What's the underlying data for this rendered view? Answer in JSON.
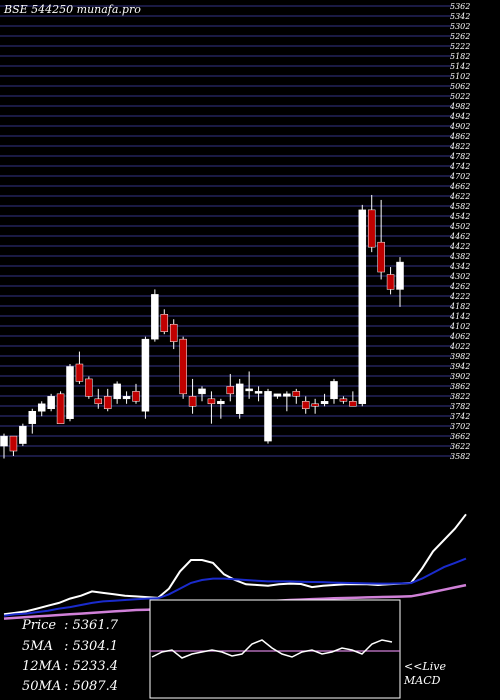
{
  "header": {
    "title": "BSE 544250  munafa.pro"
  },
  "colors": {
    "background": "#000000",
    "grid": "#2b2b6e",
    "up_candle": "#ffffff",
    "down_candle": "#c00000",
    "ma_fast": "#ffffff",
    "ma_mid": "#1a2bcc",
    "ma_slow": "#d080d8",
    "text": "#ffffff"
  },
  "chart_data": [
    {
      "type": "candlestick",
      "title": "BSE 544250  munafa.pro",
      "y_tick_labels": [
        "5362",
        "5342",
        "5302",
        "5262",
        "5222",
        "5182",
        "5142",
        "5102",
        "5062",
        "5022",
        "4982",
        "4942",
        "4902",
        "4862",
        "4822",
        "4782",
        "4742",
        "4702",
        "4662",
        "4622",
        "4582",
        "4542",
        "4502",
        "4462",
        "4422",
        "4382",
        "4342",
        "4302",
        "4262",
        "4222",
        "4182",
        "4142",
        "4102",
        "4062",
        "4022",
        "3982",
        "3942",
        "3902",
        "3862",
        "3822",
        "3782",
        "3742",
        "3702",
        "3662",
        "3622",
        "3582"
      ],
      "ylim": [
        3570,
        5380
      ],
      "candles": [
        {
          "o": 3610,
          "h": 3660,
          "l": 3560,
          "c": 3650
        },
        {
          "o": 3650,
          "h": 3640,
          "l": 3570,
          "c": 3590
        },
        {
          "o": 3620,
          "h": 3700,
          "l": 3610,
          "c": 3690
        },
        {
          "o": 3700,
          "h": 3760,
          "l": 3660,
          "c": 3750
        },
        {
          "o": 3750,
          "h": 3790,
          "l": 3730,
          "c": 3780
        },
        {
          "o": 3760,
          "h": 3820,
          "l": 3750,
          "c": 3810
        },
        {
          "o": 3820,
          "h": 3830,
          "l": 3700,
          "c": 3700
        },
        {
          "o": 3720,
          "h": 3940,
          "l": 3710,
          "c": 3930
        },
        {
          "o": 3940,
          "h": 3990,
          "l": 3860,
          "c": 3870
        },
        {
          "o": 3880,
          "h": 3890,
          "l": 3800,
          "c": 3810
        },
        {
          "o": 3800,
          "h": 3840,
          "l": 3760,
          "c": 3780
        },
        {
          "o": 3810,
          "h": 3840,
          "l": 3750,
          "c": 3760
        },
        {
          "o": 3800,
          "h": 3870,
          "l": 3780,
          "c": 3860
        },
        {
          "o": 3800,
          "h": 3830,
          "l": 3780,
          "c": 3810
        },
        {
          "o": 3830,
          "h": 3860,
          "l": 3780,
          "c": 3790
        },
        {
          "o": 3750,
          "h": 4050,
          "l": 3720,
          "c": 4040
        },
        {
          "o": 4040,
          "h": 4240,
          "l": 4030,
          "c": 4220
        },
        {
          "o": 4140,
          "h": 4160,
          "l": 4060,
          "c": 4070
        },
        {
          "o": 4100,
          "h": 4120,
          "l": 4000,
          "c": 4030
        },
        {
          "o": 4040,
          "h": 4050,
          "l": 3800,
          "c": 3820
        },
        {
          "o": 3810,
          "h": 3880,
          "l": 3740,
          "c": 3770
        },
        {
          "o": 3820,
          "h": 3850,
          "l": 3790,
          "c": 3840
        },
        {
          "o": 3800,
          "h": 3830,
          "l": 3700,
          "c": 3780
        },
        {
          "o": 3780,
          "h": 3800,
          "l": 3720,
          "c": 3790
        },
        {
          "o": 3850,
          "h": 3900,
          "l": 3790,
          "c": 3820
        },
        {
          "o": 3740,
          "h": 3880,
          "l": 3720,
          "c": 3860
        },
        {
          "o": 3840,
          "h": 3910,
          "l": 3800,
          "c": 3840
        },
        {
          "o": 3830,
          "h": 3850,
          "l": 3790,
          "c": 3830
        },
        {
          "o": 3630,
          "h": 3840,
          "l": 3620,
          "c": 3830
        },
        {
          "o": 3810,
          "h": 3820,
          "l": 3800,
          "c": 3820
        },
        {
          "o": 3810,
          "h": 3830,
          "l": 3750,
          "c": 3820
        },
        {
          "o": 3830,
          "h": 3840,
          "l": 3780,
          "c": 3810
        },
        {
          "o": 3790,
          "h": 3810,
          "l": 3740,
          "c": 3760
        },
        {
          "o": 3780,
          "h": 3800,
          "l": 3740,
          "c": 3770
        },
        {
          "o": 3780,
          "h": 3820,
          "l": 3770,
          "c": 3790
        },
        {
          "o": 3800,
          "h": 3880,
          "l": 3780,
          "c": 3870
        },
        {
          "o": 3800,
          "h": 3810,
          "l": 3780,
          "c": 3790
        },
        {
          "o": 3790,
          "h": 3830,
          "l": 3770,
          "c": 3770
        },
        {
          "o": 3780,
          "h": 4580,
          "l": 3770,
          "c": 4560
        },
        {
          "o": 4560,
          "h": 4620,
          "l": 4390,
          "c": 4410
        },
        {
          "o": 4430,
          "h": 4600,
          "l": 4280,
          "c": 4310
        },
        {
          "o": 4300,
          "h": 4330,
          "l": 4220,
          "c": 4240
        },
        {
          "o": 4240,
          "h": 4370,
          "l": 4170,
          "c": 4350
        }
      ]
    },
    {
      "type": "line",
      "series": [
        {
          "name": "ma_fast",
          "values": [
            3600,
            3610,
            3620,
            3640,
            3660,
            3680,
            3710,
            3730,
            3760,
            3750,
            3740,
            3730,
            3725,
            3720,
            3715,
            3780,
            3900,
            3980,
            3980,
            3960,
            3880,
            3840,
            3810,
            3805,
            3800,
            3810,
            3815,
            3812,
            3790,
            3800,
            3805,
            3810,
            3810,
            3810,
            3805,
            3810,
            3815,
            3820,
            3920,
            4040,
            4120,
            4200,
            4300
          ]
        },
        {
          "name": "ma_mid",
          "values": [
            3590,
            3600,
            3605,
            3615,
            3625,
            3640,
            3650,
            3665,
            3680,
            3690,
            3695,
            3700,
            3705,
            3710,
            3712,
            3740,
            3780,
            3820,
            3840,
            3850,
            3850,
            3845,
            3840,
            3835,
            3830,
            3830,
            3830,
            3828,
            3826,
            3825,
            3822,
            3820,
            3818,
            3816,
            3815,
            3815,
            3816,
            3818,
            3850,
            3890,
            3930,
            3960,
            3990
          ]
        },
        {
          "name": "ma_slow",
          "values": [
            3570,
            3575,
            3580,
            3585,
            3590,
            3595,
            3600,
            3605,
            3610,
            3615,
            3620,
            3625,
            3630,
            3632,
            3635,
            3640,
            3648,
            3656,
            3664,
            3670,
            3676,
            3680,
            3684,
            3688,
            3692,
            3696,
            3700,
            3703,
            3706,
            3709,
            3712,
            3714,
            3716,
            3718,
            3720,
            3722,
            3724,
            3726,
            3740,
            3756,
            3772,
            3788,
            3804
          ]
        }
      ]
    }
  ],
  "info": {
    "price_label": "Price",
    "price_value": ": 5361.7",
    "ma5_label": "5MA",
    "ma5_value": ": 5304.1",
    "ma12_label": "12MA",
    "ma12_value": ": 5233.4",
    "ma50_label": "50MA",
    "ma50_value": ": 5087.4"
  },
  "macd": {
    "live_label": "<<Live",
    "macd_label": "MACD"
  }
}
